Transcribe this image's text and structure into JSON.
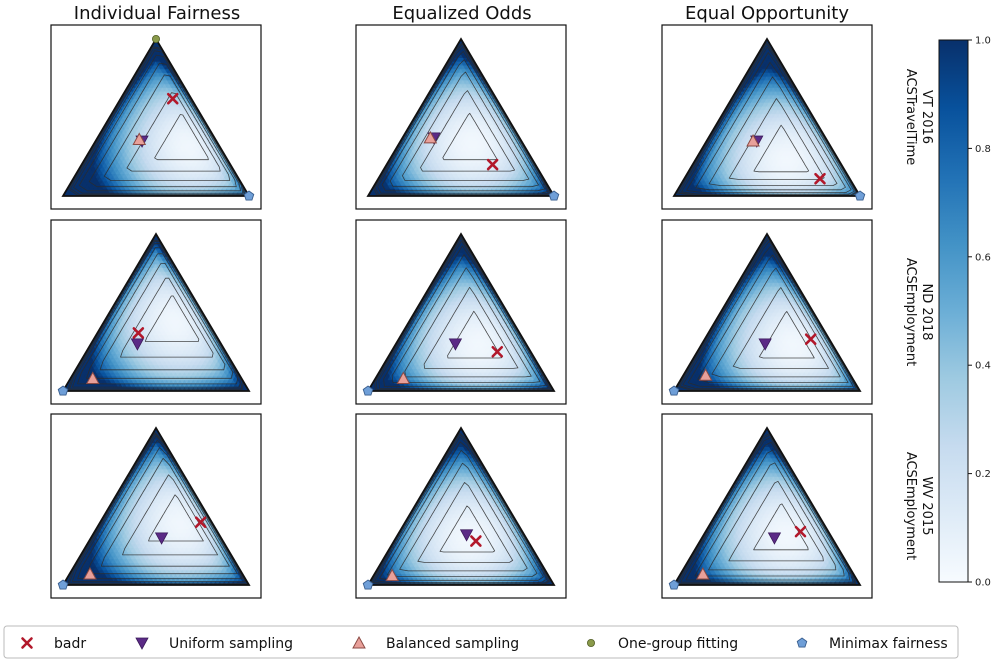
{
  "colors": {
    "marker_badr": "#b2182b",
    "marker_uniform": "#5b2a86",
    "marker_balanced": "#e8a09a",
    "marker_onegroup": "#8a9a4a",
    "marker_minimax": "#6f9fd8",
    "colormap_low": "#f7fbff",
    "colormap_high": "#08306b"
  },
  "column_titles": [
    "Individual Fairness",
    "Equalized Odds",
    "Equal Opportunity"
  ],
  "row_labels": [
    [
      "ACSTravelTime",
      "VT 2016"
    ],
    [
      "ACSEmployment",
      "ND 2018"
    ],
    [
      "ACSEmployment",
      "WV 2015"
    ]
  ],
  "colorbar": {
    "ticks": [
      "0.0",
      "0.2",
      "0.4",
      "0.6",
      "0.8",
      "1.0"
    ]
  },
  "legend": {
    "entries": [
      {
        "key": "badr",
        "label": "badr",
        "marker": "x-icon"
      },
      {
        "key": "uniform",
        "label": "Uniform sampling",
        "marker": "triangle-down-icon"
      },
      {
        "key": "balanced",
        "label": "Balanced sampling",
        "marker": "triangle-up-icon"
      },
      {
        "key": "onegroup",
        "label": "One-group fitting",
        "marker": "circle-icon"
      },
      {
        "key": "minimax",
        "label": "Minimax fairness",
        "marker": "pentagon-icon"
      }
    ]
  },
  "chart_data": [
    {
      "type": "heatmap",
      "plot": "simplex",
      "row": 0,
      "col": 0,
      "clim": [
        0,
        1
      ],
      "minimum": [
        0.53,
        0.33,
        0.14
      ],
      "corner_values": [
        0.4,
        0.85,
        0.15
      ],
      "points": {
        "badr": [
          0.28,
          0.62,
          0.1
        ],
        "uniform": [
          0.25,
          0.35,
          0.4
        ],
        "balanced": [
          0.23,
          0.36,
          0.41
        ],
        "onegroup": [
          0.0,
          1.0,
          0.0
        ],
        "minimax": [
          1.0,
          0.0,
          0.0
        ]
      }
    },
    {
      "type": "heatmap",
      "plot": "simplex",
      "row": 0,
      "col": 1,
      "clim": [
        0,
        1
      ],
      "minimum": [
        0.4,
        0.33,
        0.27
      ],
      "corner_values": [
        0.4,
        0.7,
        0.45
      ],
      "points": {
        "badr": [
          0.57,
          0.2,
          0.23
        ],
        "uniform": [
          0.17,
          0.37,
          0.46
        ],
        "balanced": [
          0.15,
          0.37,
          0.48
        ],
        "onegroup": [
          1.0,
          0.0,
          0.0
        ],
        "minimax": [
          1.0,
          0.0,
          0.0
        ]
      }
    },
    {
      "type": "heatmap",
      "plot": "simplex",
      "row": 0,
      "col": 2,
      "clim": [
        0,
        1
      ],
      "minimum": [
        0.5,
        0.22,
        0.28
      ],
      "corner_values": [
        0.25,
        0.75,
        0.55
      ],
      "points": {
        "badr": [
          0.73,
          0.11,
          0.16
        ],
        "uniform": [
          0.27,
          0.35,
          0.38
        ],
        "balanced": [
          0.25,
          0.35,
          0.4
        ],
        "onegroup": [
          1.0,
          0.0,
          0.0
        ],
        "minimax": [
          1.0,
          0.0,
          0.0
        ]
      }
    },
    {
      "type": "heatmap",
      "plot": "simplex",
      "row": 1,
      "col": 0,
      "clim": [
        0,
        1
      ],
      "minimum": [
        0.4,
        0.45,
        0.15
      ],
      "corner_values": [
        0.45,
        0.75,
        0.55
      ],
      "points": {
        "badr": [
          0.22,
          0.37,
          0.41
        ],
        "uniform": [
          0.25,
          0.3,
          0.45
        ],
        "balanced": [
          0.12,
          0.08,
          0.8
        ],
        "onegroup": [
          0.0,
          0.0,
          1.0
        ],
        "minimax": [
          0.0,
          0.0,
          1.0
        ]
      }
    },
    {
      "type": "heatmap",
      "plot": "simplex",
      "row": 1,
      "col": 1,
      "clim": [
        0,
        1
      ],
      "minimum": [
        0.45,
        0.3,
        0.25
      ],
      "corner_values": [
        0.6,
        0.8,
        0.5
      ],
      "points": {
        "badr": [
          0.57,
          0.25,
          0.18
        ],
        "uniform": [
          0.32,
          0.3,
          0.38
        ],
        "balanced": [
          0.15,
          0.08,
          0.77
        ],
        "onegroup": [
          0.0,
          0.0,
          1.0
        ],
        "minimax": [
          0.0,
          0.0,
          1.0
        ]
      }
    },
    {
      "type": "heatmap",
      "plot": "simplex",
      "row": 1,
      "col": 2,
      "clim": [
        0,
        1
      ],
      "minimum": [
        0.5,
        0.3,
        0.2
      ],
      "corner_values": [
        0.45,
        0.75,
        0.6
      ],
      "points": {
        "badr": [
          0.57,
          0.33,
          0.1
        ],
        "uniform": [
          0.34,
          0.3,
          0.36
        ],
        "balanced": [
          0.12,
          0.1,
          0.78
        ],
        "onegroup": [
          0.0,
          0.0,
          1.0
        ],
        "minimax": [
          0.0,
          0.0,
          1.0
        ]
      }
    },
    {
      "type": "heatmap",
      "plot": "simplex",
      "row": 2,
      "col": 0,
      "clim": [
        0,
        1
      ],
      "minimum": [
        0.45,
        0.4,
        0.15
      ],
      "corner_values": [
        0.5,
        0.65,
        0.5
      ],
      "points": {
        "badr": [
          0.54,
          0.4,
          0.06
        ],
        "uniform": [
          0.38,
          0.3,
          0.32
        ],
        "balanced": [
          0.11,
          0.07,
          0.82
        ],
        "onegroup": [
          0.0,
          0.0,
          1.0
        ],
        "minimax": [
          0.0,
          0.0,
          1.0
        ]
      }
    },
    {
      "type": "heatmap",
      "plot": "simplex",
      "row": 2,
      "col": 1,
      "clim": [
        0,
        1
      ],
      "minimum": [
        0.4,
        0.3,
        0.3
      ],
      "corner_values": [
        0.45,
        0.55,
        0.45
      ],
      "points": {
        "badr": [
          0.44,
          0.28,
          0.28
        ],
        "uniform": [
          0.37,
          0.32,
          0.31
        ],
        "balanced": [
          0.1,
          0.06,
          0.84
        ],
        "onegroup": [
          0.0,
          0.0,
          1.0
        ],
        "minimax": [
          0.0,
          0.0,
          1.0
        ]
      }
    },
    {
      "type": "heatmap",
      "plot": "simplex",
      "row": 2,
      "col": 2,
      "clim": [
        0,
        1
      ],
      "minimum": [
        0.45,
        0.32,
        0.23
      ],
      "corner_values": [
        0.5,
        0.6,
        0.45
      ],
      "points": {
        "badr": [
          0.51,
          0.34,
          0.15
        ],
        "uniform": [
          0.39,
          0.3,
          0.31
        ],
        "balanced": [
          0.12,
          0.07,
          0.81
        ],
        "onegroup": [
          0.0,
          0.0,
          1.0
        ],
        "minimax": [
          0.0,
          0.0,
          1.0
        ]
      }
    }
  ]
}
